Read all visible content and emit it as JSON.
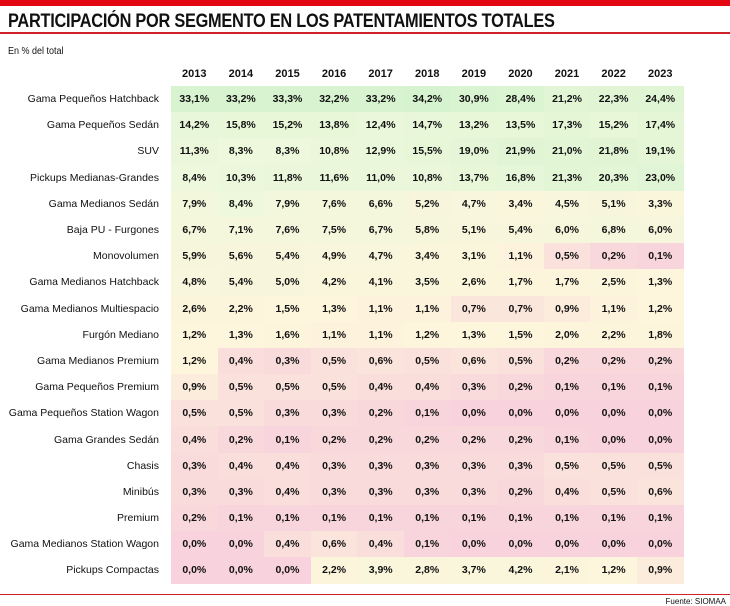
{
  "title": "PARTICIPACIÓN POR SEGMENTO EN LOS PATENTAMIENTOS TOTALES",
  "subtitle": "En % del total",
  "source": "Fuente: SIOMAA",
  "colors": {
    "accent": "#e30613",
    "high": "#d6f3cf",
    "mid": "#fdf5dc",
    "low": "#f8d2dc"
  },
  "chart_data": {
    "type": "heatmap",
    "title": "PARTICIPACIÓN POR SEGMENTO EN LOS PATENTAMIENTOS TOTALES",
    "unit": "% del total",
    "columns": [
      "2013",
      "2014",
      "2015",
      "2016",
      "2017",
      "2018",
      "2019",
      "2020",
      "2021",
      "2022",
      "2023"
    ],
    "rows": [
      {
        "label": "Gama Pequeños Hatchback",
        "values": [
          33.1,
          33.2,
          33.3,
          32.2,
          33.2,
          34.2,
          30.9,
          28.4,
          21.2,
          22.3,
          24.4
        ]
      },
      {
        "label": "Gama Pequeños Sedán",
        "values": [
          14.2,
          15.8,
          15.2,
          13.8,
          12.4,
          14.7,
          13.2,
          13.5,
          17.3,
          15.2,
          17.4
        ]
      },
      {
        "label": "SUV",
        "values": [
          11.3,
          8.3,
          8.3,
          10.8,
          12.9,
          15.5,
          19.0,
          21.9,
          21.0,
          21.8,
          19.1
        ]
      },
      {
        "label": "Pickups Medianas-Grandes",
        "values": [
          8.4,
          10.3,
          11.8,
          11.6,
          11.0,
          10.8,
          13.7,
          16.8,
          21.3,
          20.3,
          23.0
        ]
      },
      {
        "label": "Gama Medianos Sedán",
        "values": [
          7.9,
          8.4,
          7.9,
          7.6,
          6.6,
          5.2,
          4.7,
          3.4,
          4.5,
          5.1,
          3.3
        ]
      },
      {
        "label": "Baja PU - Furgones",
        "values": [
          6.7,
          7.1,
          7.6,
          7.5,
          6.7,
          5.8,
          5.1,
          5.4,
          6.0,
          6.8,
          6.0
        ]
      },
      {
        "label": "Monovolumen",
        "values": [
          5.9,
          5.6,
          5.4,
          4.9,
          4.7,
          3.4,
          3.1,
          1.1,
          0.5,
          0.2,
          0.1
        ]
      },
      {
        "label": "Gama Medianos Hatchback",
        "values": [
          4.8,
          5.4,
          5.0,
          4.2,
          4.1,
          3.5,
          2.6,
          1.7,
          1.7,
          2.5,
          1.3
        ]
      },
      {
        "label": "Gama Medianos Multiespacio",
        "values": [
          2.6,
          2.2,
          1.5,
          1.3,
          1.1,
          1.1,
          0.7,
          0.7,
          0.9,
          1.1,
          1.2
        ]
      },
      {
        "label": "Furgón Mediano",
        "values": [
          1.2,
          1.3,
          1.6,
          1.1,
          1.1,
          1.2,
          1.3,
          1.5,
          2.0,
          2.2,
          1.8
        ]
      },
      {
        "label": "Gama Medianos Premium",
        "values": [
          1.2,
          0.4,
          0.3,
          0.5,
          0.6,
          0.5,
          0.6,
          0.5,
          0.2,
          0.2,
          0.2
        ]
      },
      {
        "label": "Gama Pequeños Premium",
        "values": [
          0.9,
          0.5,
          0.5,
          0.5,
          0.4,
          0.4,
          0.3,
          0.2,
          0.1,
          0.1,
          0.1
        ]
      },
      {
        "label": "Gama Pequeños Station Wagon",
        "values": [
          0.5,
          0.5,
          0.3,
          0.3,
          0.2,
          0.1,
          0.0,
          0.0,
          0.0,
          0.0,
          0.0
        ]
      },
      {
        "label": "Gama Grandes Sedán",
        "values": [
          0.4,
          0.2,
          0.1,
          0.2,
          0.2,
          0.2,
          0.2,
          0.2,
          0.1,
          0.0,
          0.0
        ]
      },
      {
        "label": "Chasis",
        "values": [
          0.3,
          0.4,
          0.4,
          0.3,
          0.3,
          0.3,
          0.3,
          0.3,
          0.5,
          0.5,
          0.5
        ]
      },
      {
        "label": "Minibús",
        "values": [
          0.3,
          0.3,
          0.4,
          0.3,
          0.3,
          0.3,
          0.3,
          0.2,
          0.4,
          0.5,
          0.6
        ]
      },
      {
        "label": "Premium",
        "values": [
          0.2,
          0.1,
          0.1,
          0.1,
          0.1,
          0.1,
          0.1,
          0.1,
          0.1,
          0.1,
          0.1
        ]
      },
      {
        "label": "Gama Medianos Station Wagon",
        "values": [
          0.0,
          0.0,
          0.4,
          0.6,
          0.4,
          0.1,
          0.0,
          0.0,
          0.0,
          0.0,
          0.0
        ]
      },
      {
        "label": "Pickups Compactas",
        "values": [
          0.0,
          0.0,
          0.0,
          2.2,
          3.9,
          2.8,
          3.7,
          4.2,
          2.1,
          1.2,
          0.9
        ]
      }
    ]
  }
}
